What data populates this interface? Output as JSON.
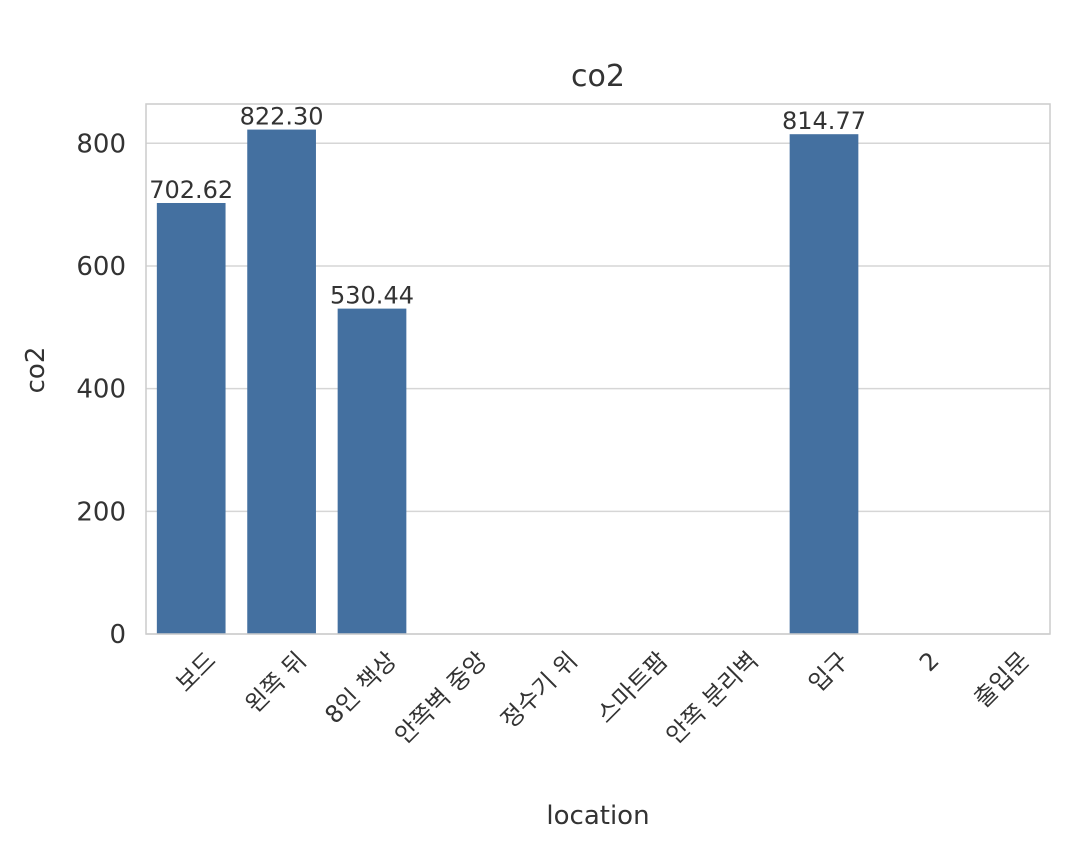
{
  "chart_data": {
    "type": "bar",
    "title": "co2",
    "xlabel": "location",
    "ylabel": "co2",
    "categories": [
      "보드",
      "왼쪽 뒤",
      "8인 책상",
      "안쪽벽 중앙",
      "정수기 위",
      "스마트팜",
      "안쪽 분리벽",
      "입구",
      "2",
      "출입문"
    ],
    "values": [
      702.62,
      822.3,
      530.44,
      0,
      0,
      0,
      0,
      814.77,
      0,
      0
    ],
    "data_labels": [
      "702.62",
      "822.30",
      "530.44",
      "",
      "",
      "",
      "",
      "814.77",
      "",
      ""
    ],
    "ylim": [
      0,
      864
    ],
    "yticks": [
      0,
      200,
      400,
      600,
      800
    ],
    "grid": true,
    "bar_color": "#4470a0"
  }
}
